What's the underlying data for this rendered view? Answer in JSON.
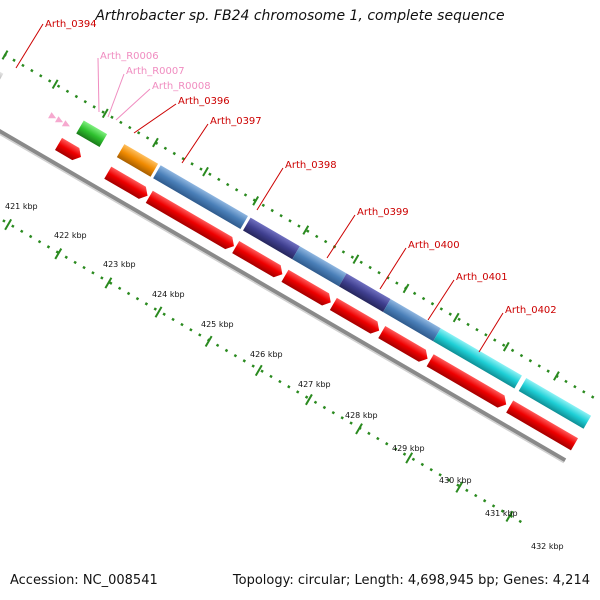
{
  "title": "Arthrobacter sp. FB24 chromosome 1, complete sequence",
  "footer": {
    "accession": "Accession: NC_008541",
    "summary": "Topology: circular; Length: 4,698,945 bp; Genes: 4,214"
  },
  "colors": {
    "gene_label": "#cc0000",
    "rna_label": "#f08cc0",
    "tick": "#2a8a1f",
    "backbone": "#8a8a8a",
    "feature_red": "#ee0000",
    "feature_blue": "#0000dd",
    "feature_steel": "#4a7fb8",
    "feature_purple": "#3f3f8f",
    "feature_cyan": "#1ecfd6",
    "feature_orange": "#f08a00",
    "feature_green": "#2ec02e",
    "feature_gray": "#b9b9b9"
  },
  "gene_labels": [
    {
      "id": "lbl-0394",
      "text": "Arth_0394",
      "kind": "gene"
    },
    {
      "id": "lbl-r0006",
      "text": "Arth_R0006",
      "kind": "rna"
    },
    {
      "id": "lbl-r0007",
      "text": "Arth_R0007",
      "kind": "rna"
    },
    {
      "id": "lbl-r0008",
      "text": "Arth_R0008",
      "kind": "rna"
    },
    {
      "id": "lbl-0396",
      "text": "Arth_0396",
      "kind": "gene"
    },
    {
      "id": "lbl-0397",
      "text": "Arth_0397",
      "kind": "gene"
    },
    {
      "id": "lbl-0398",
      "text": "Arth_0398",
      "kind": "gene"
    },
    {
      "id": "lbl-0399",
      "text": "Arth_0399",
      "kind": "gene"
    },
    {
      "id": "lbl-0400",
      "text": "Arth_0400",
      "kind": "gene"
    },
    {
      "id": "lbl-0401",
      "text": "Arth_0401",
      "kind": "gene"
    },
    {
      "id": "lbl-0402",
      "text": "Arth_0402",
      "kind": "gene"
    }
  ],
  "kbp_labels": [
    "421 kbp",
    "422 kbp",
    "423 kbp",
    "424 kbp",
    "425 kbp",
    "426 kbp",
    "427 kbp",
    "428 kbp",
    "429 kbp",
    "430 kbp",
    "431 kbp",
    "432 kbp"
  ]
}
